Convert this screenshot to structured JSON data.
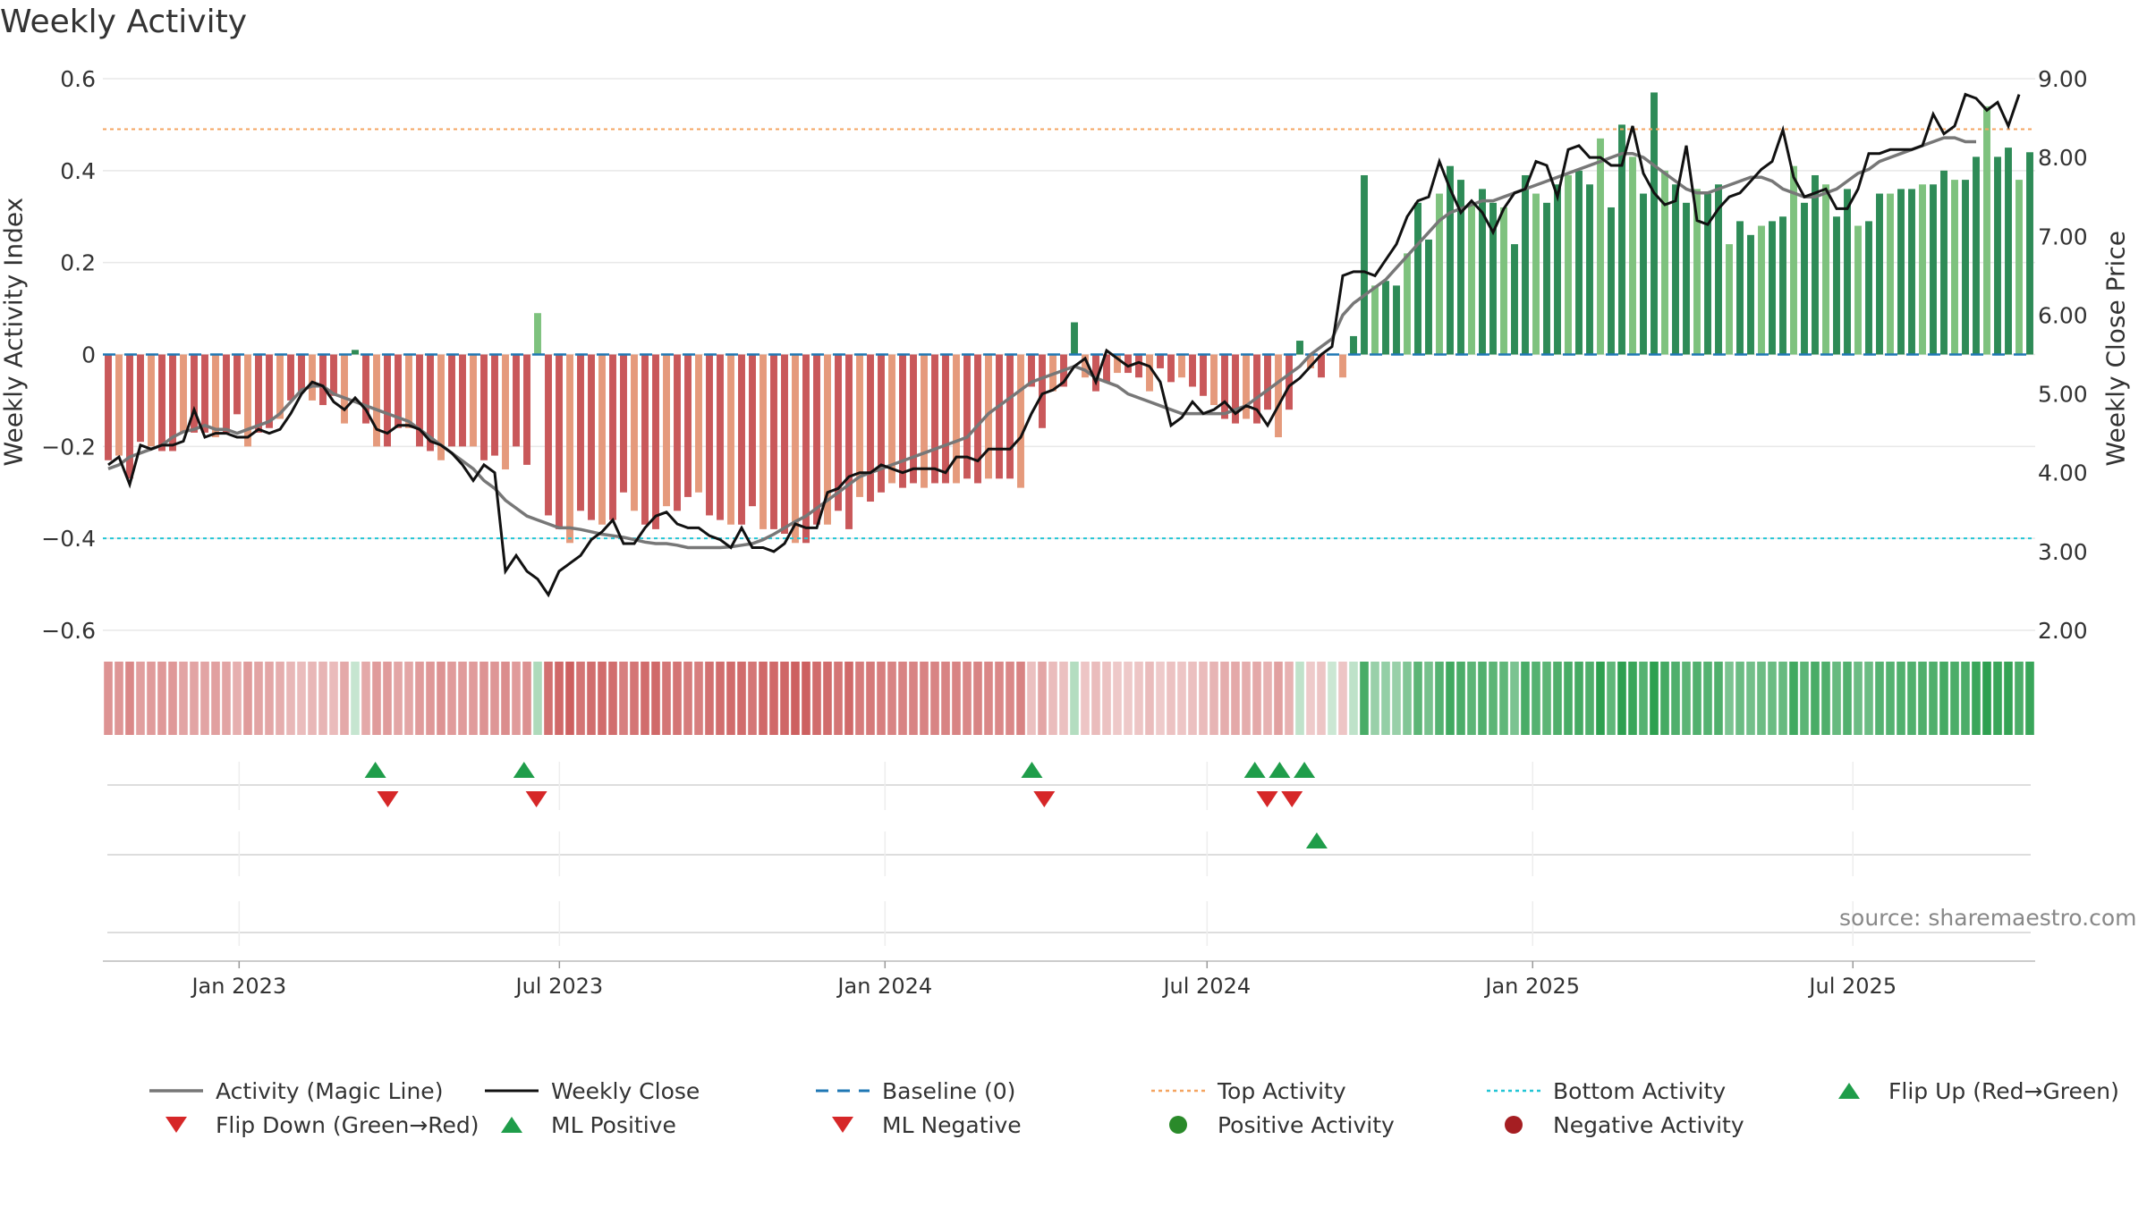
{
  "title": "Weekly Activity",
  "source_label": "source: sharemaestro.com",
  "y_left_label": "Weekly Activity Index",
  "y_right_label": "Weekly Close Price",
  "colors": {
    "pos_strong": "#2e8b57",
    "pos_light": "#7ec27e",
    "neg_strong": "#c9585a",
    "neg_light": "#e59a7c",
    "magic_line": "#777777",
    "close_line": "#111111",
    "baseline": "#1f77b4",
    "top": "#f4a460",
    "bottom": "#22c5d5",
    "tri_green": "#1f9d4a",
    "tri_red": "#d62728"
  },
  "chart_data": {
    "type": "bar",
    "x_start": "2022-10-16",
    "x_end": "2025-10-12",
    "x_ticks": [
      "Jan 2023",
      "Jul 2023",
      "Jan 2024",
      "Jul 2024",
      "Jan 2025",
      "Jul 2025"
    ],
    "left_axis": {
      "ylim": [
        -0.6,
        0.6
      ],
      "ticks": [
        "−0.6",
        "−0.4",
        "−0.2",
        "0",
        "0.2",
        "0.4",
        "0.6"
      ]
    },
    "right_axis": {
      "ylim": [
        2.0,
        9.0
      ],
      "ticks": [
        "2.00",
        "3.00",
        "4.00",
        "5.00",
        "6.00",
        "7.00",
        "8.00",
        "9.00"
      ]
    },
    "top_activity": 0.49,
    "bottom_activity": -0.4,
    "activity": [
      -0.23,
      -0.22,
      -0.27,
      -0.19,
      -0.2,
      -0.21,
      -0.21,
      -0.17,
      -0.17,
      -0.17,
      -0.18,
      -0.17,
      -0.13,
      -0.2,
      -0.17,
      -0.16,
      -0.14,
      -0.1,
      -0.08,
      -0.1,
      -0.11,
      -0.09,
      -0.15,
      0.01,
      -0.15,
      -0.2,
      -0.2,
      -0.16,
      -0.16,
      -0.2,
      -0.21,
      -0.23,
      -0.2,
      -0.2,
      -0.2,
      -0.23,
      -0.22,
      -0.25,
      -0.2,
      -0.24,
      0.09,
      -0.35,
      -0.38,
      -0.41,
      -0.34,
      -0.36,
      -0.37,
      -0.36,
      -0.3,
      -0.34,
      -0.37,
      -0.38,
      -0.33,
      -0.34,
      -0.31,
      -0.3,
      -0.35,
      -0.36,
      -0.37,
      -0.37,
      -0.33,
      -0.38,
      -0.38,
      -0.39,
      -0.41,
      -0.41,
      -0.37,
      -0.37,
      -0.34,
      -0.38,
      -0.31,
      -0.32,
      -0.3,
      -0.28,
      -0.29,
      -0.28,
      -0.29,
      -0.28,
      -0.28,
      -0.28,
      -0.27,
      -0.28,
      -0.27,
      -0.27,
      -0.27,
      -0.29,
      -0.07,
      -0.16,
      -0.08,
      -0.07,
      0.07,
      -0.05,
      -0.08,
      -0.06,
      -0.04,
      -0.04,
      -0.05,
      -0.08,
      -0.03,
      -0.06,
      -0.05,
      -0.07,
      -0.09,
      -0.11,
      -0.14,
      -0.15,
      -0.14,
      -0.15,
      -0.12,
      -0.18,
      -0.12,
      0.03,
      -0.03,
      -0.05,
      0.0,
      -0.05,
      0.04,
      0.39,
      0.15,
      0.16,
      0.15,
      0.22,
      0.33,
      0.25,
      0.35,
      0.41,
      0.38,
      0.33,
      0.36,
      0.33,
      0.32,
      0.24,
      0.39,
      0.35,
      0.33,
      0.37,
      0.39,
      0.4,
      0.37,
      0.47,
      0.32,
      0.5,
      0.43,
      0.35,
      0.57,
      0.4,
      0.37,
      0.33,
      0.36,
      0.35,
      0.37,
      0.24,
      0.29,
      0.26,
      0.28,
      0.29,
      0.3,
      0.41,
      0.33,
      0.39,
      0.37,
      0.3,
      0.36,
      0.28,
      0.29,
      0.35,
      0.35,
      0.36,
      0.36,
      0.37,
      0.37,
      0.4,
      0.38,
      0.38,
      0.43,
      0.54,
      0.43,
      0.45,
      0.38,
      0.44
    ],
    "close": [
      4.1,
      4.2,
      3.85,
      4.35,
      4.3,
      4.35,
      4.35,
      4.4,
      4.8,
      4.45,
      4.5,
      4.5,
      4.45,
      4.45,
      4.55,
      4.5,
      4.55,
      4.75,
      5.0,
      5.15,
      5.1,
      4.9,
      4.8,
      4.95,
      4.8,
      4.55,
      4.5,
      4.6,
      4.6,
      4.55,
      4.4,
      4.35,
      4.25,
      4.1,
      3.9,
      4.1,
      4.0,
      2.75,
      2.95,
      2.75,
      2.65,
      2.45,
      2.75,
      2.85,
      2.95,
      3.15,
      3.25,
      3.4,
      3.1,
      3.1,
      3.3,
      3.45,
      3.5,
      3.35,
      3.3,
      3.3,
      3.2,
      3.15,
      3.05,
      3.3,
      3.05,
      3.05,
      3.0,
      3.1,
      3.35,
      3.3,
      3.3,
      3.75,
      3.8,
      3.95,
      4.0,
      4.0,
      4.1,
      4.05,
      4.0,
      4.05,
      4.05,
      4.05,
      4.0,
      4.2,
      4.2,
      4.15,
      4.3,
      4.3,
      4.3,
      4.45,
      4.75,
      5.0,
      5.05,
      5.15,
      5.35,
      5.45,
      5.15,
      5.55,
      5.45,
      5.35,
      5.4,
      5.35,
      5.15,
      4.6,
      4.7,
      4.9,
      4.75,
      4.8,
      4.9,
      4.75,
      4.85,
      4.8,
      4.6,
      4.85,
      5.1,
      5.2,
      5.35,
      5.5,
      5.6,
      6.5,
      6.55,
      6.55,
      6.5,
      6.7,
      6.9,
      7.25,
      7.45,
      7.5,
      7.95,
      7.6,
      7.3,
      7.45,
      7.3,
      7.05,
      7.35,
      7.55,
      7.6,
      7.95,
      7.9,
      7.5,
      8.1,
      8.15,
      8.0,
      8.0,
      7.9,
      7.9,
      8.4,
      7.8,
      7.55,
      7.4,
      7.45,
      8.15,
      7.2,
      7.15,
      7.35,
      7.5,
      7.55,
      7.7,
      7.85,
      7.95,
      8.35,
      7.75,
      7.5,
      7.55,
      7.6,
      7.35,
      7.35,
      7.6,
      8.05,
      8.05,
      8.1,
      8.1,
      8.1,
      8.15,
      8.55,
      8.3,
      8.4,
      8.8,
      8.75,
      8.6,
      8.7,
      8.4,
      8.8
    ],
    "magic": [
      4.05,
      4.1,
      4.2,
      4.25,
      4.3,
      4.35,
      4.45,
      4.52,
      4.55,
      4.6,
      4.55,
      4.55,
      4.5,
      4.55,
      4.6,
      4.65,
      4.75,
      4.9,
      5.05,
      5.1,
      5.1,
      5.0,
      4.95,
      4.9,
      4.85,
      4.8,
      4.75,
      4.7,
      4.65,
      4.55,
      4.45,
      4.35,
      4.25,
      4.15,
      4.05,
      3.9,
      3.8,
      3.65,
      3.55,
      3.45,
      3.4,
      3.35,
      3.3,
      3.3,
      3.28,
      3.25,
      3.22,
      3.2,
      3.18,
      3.15,
      3.12,
      3.1,
      3.1,
      3.08,
      3.05,
      3.05,
      3.05,
      3.05,
      3.06,
      3.08,
      3.1,
      3.15,
      3.22,
      3.3,
      3.38,
      3.45,
      3.55,
      3.65,
      3.75,
      3.85,
      3.95,
      4.0,
      4.05,
      4.1,
      4.15,
      4.2,
      4.25,
      4.3,
      4.35,
      4.4,
      4.45,
      4.6,
      4.75,
      4.85,
      4.95,
      5.05,
      5.15,
      5.2,
      5.25,
      5.3,
      5.35,
      5.3,
      5.2,
      5.15,
      5.1,
      5.0,
      4.95,
      4.9,
      4.85,
      4.8,
      4.75,
      4.75,
      4.75,
      4.75,
      4.75,
      4.8,
      4.85,
      4.95,
      5.05,
      5.15,
      5.25,
      5.35,
      5.5,
      5.6,
      5.7,
      6.0,
      6.15,
      6.25,
      6.35,
      6.45,
      6.6,
      6.75,
      6.9,
      7.05,
      7.2,
      7.3,
      7.35,
      7.4,
      7.45,
      7.45,
      7.5,
      7.55,
      7.6,
      7.65,
      7.7,
      7.75,
      7.8,
      7.85,
      7.9,
      7.95,
      8.0,
      8.05,
      8.05,
      8.0,
      7.9,
      7.8,
      7.7,
      7.6,
      7.55,
      7.55,
      7.6,
      7.65,
      7.7,
      7.75,
      7.75,
      7.7,
      7.6,
      7.55,
      7.5,
      7.5,
      7.55,
      7.6,
      7.7,
      7.8,
      7.85,
      7.95,
      8.0,
      8.05,
      8.1,
      8.15,
      8.2,
      8.25,
      8.25,
      8.2,
      8.2
    ],
    "flip_up": [
      "2023-03-19",
      "2023-06-11",
      "2024-03-24",
      "2024-07-28",
      "2024-08-11",
      "2024-08-25"
    ],
    "flip_down": [
      "2023-03-26",
      "2023-06-18",
      "2024-03-31",
      "2024-08-04",
      "2024-08-18"
    ],
    "ml_positive": [
      "2024-09-01"
    ],
    "ml_negative": [],
    "legend": [
      {
        "label": "Activity (Magic Line)",
        "symbol": "line-gray"
      },
      {
        "label": "Weekly Close",
        "symbol": "line-black"
      },
      {
        "label": "Baseline (0)",
        "symbol": "dash-blue"
      },
      {
        "label": "Top Activity",
        "symbol": "dot-orange"
      },
      {
        "label": "Bottom Activity",
        "symbol": "dot-cyan"
      },
      {
        "label": "Flip Up (Red→Green)",
        "symbol": "tri-up-green"
      },
      {
        "label": "Flip Down (Green→Red)",
        "symbol": "tri-down-red"
      },
      {
        "label": "ML Positive",
        "symbol": "tri-up-green"
      },
      {
        "label": "ML Negative",
        "symbol": "tri-down-red"
      },
      {
        "label": "Positive Activity",
        "symbol": "circle-green"
      },
      {
        "label": "Negative Activity",
        "symbol": "circle-red"
      }
    ]
  }
}
